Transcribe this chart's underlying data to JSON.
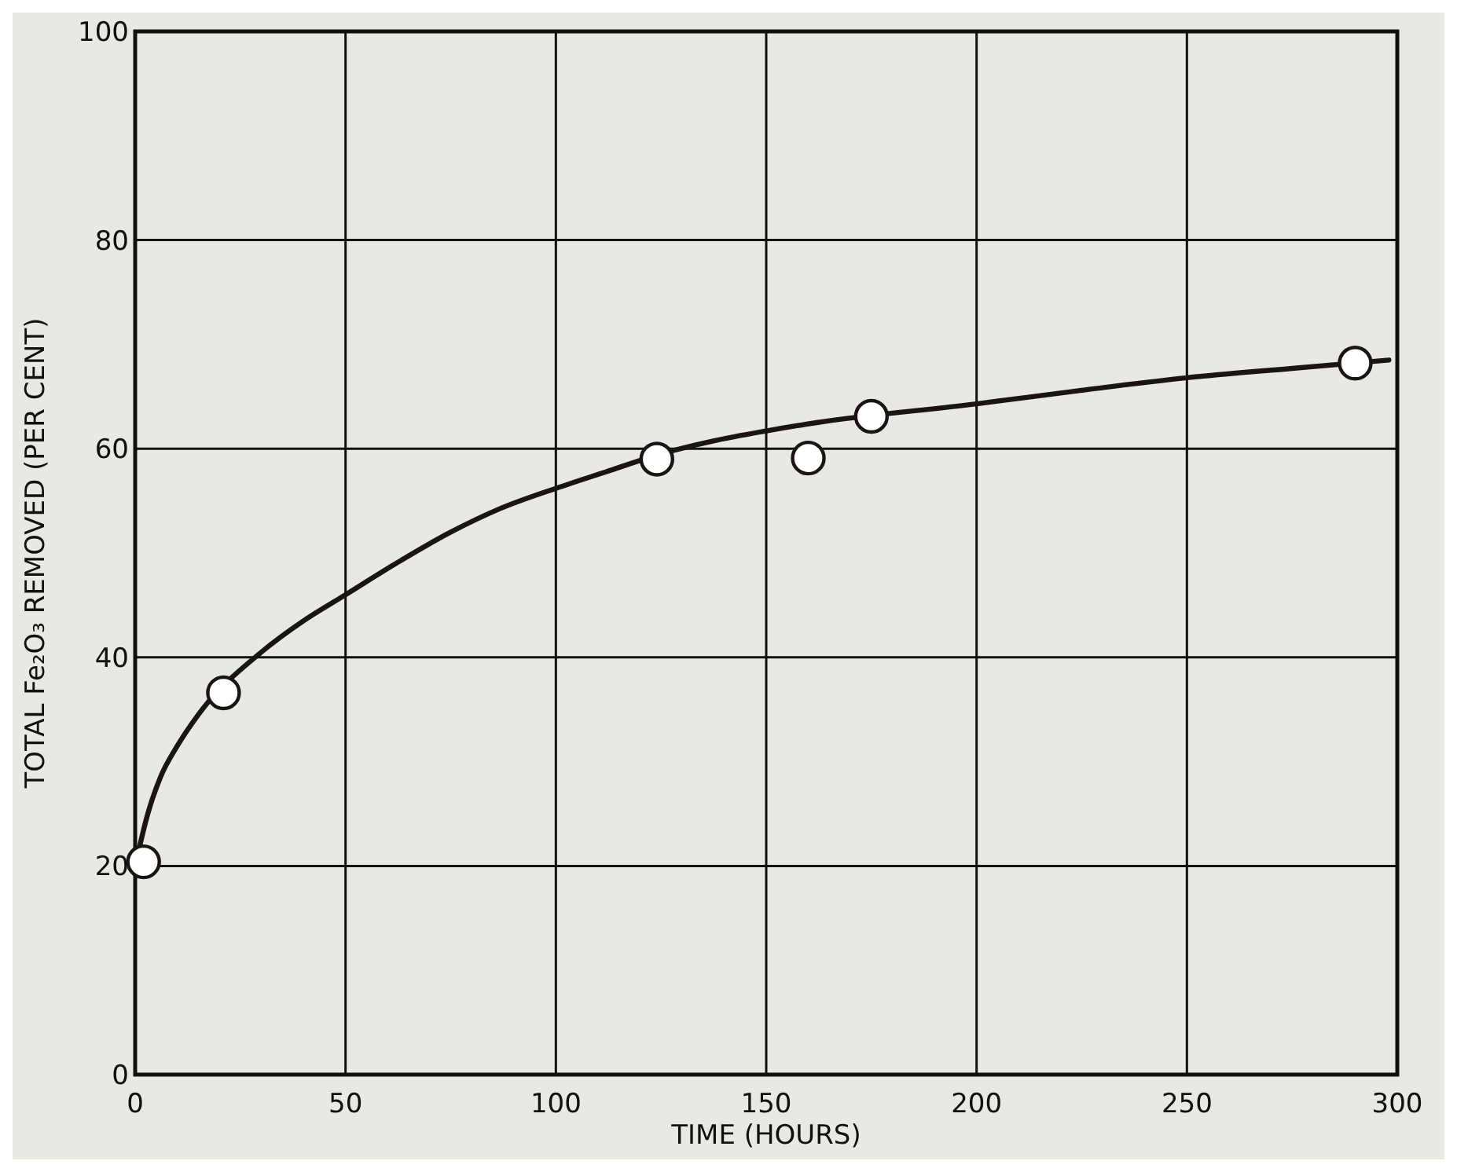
{
  "chart_data": {
    "type": "scatter",
    "xlabel": "TIME (HOURS)",
    "ylabel": "TOTAL Fe₂O₃ REMOVED (PER CENT)",
    "xlim": [
      0,
      300
    ],
    "ylim": [
      0,
      100
    ],
    "xticks": [
      0,
      50,
      100,
      150,
      200,
      250,
      300
    ],
    "yticks": [
      0,
      20,
      40,
      60,
      80,
      100
    ],
    "grid": true,
    "series": [
      {
        "type": "line",
        "color": "#1a1414",
        "marker": "none",
        "line_style": "solid",
        "x": [
          0,
          3,
          6,
          10,
          15,
          30,
          40,
          50,
          62,
          75,
          87,
          100,
          112,
          125,
          137,
          150,
          162,
          200,
          225,
          250,
          275,
          298
        ],
        "values": [
          20,
          25,
          28.5,
          31.5,
          34.5,
          40.5,
          43.5,
          46,
          49,
          52,
          54.3,
          56.2,
          57.8,
          59.5,
          60.7,
          61.7,
          62.5,
          64.3,
          65.6,
          66.8,
          67.7,
          68.5
        ]
      },
      {
        "color": "#1a1414",
        "marker": "circle",
        "x": [
          2,
          21,
          124,
          160,
          175,
          290
        ],
        "values": [
          20.4,
          36.6,
          59,
          59.1,
          63.1,
          68.2
        ]
      }
    ]
  }
}
